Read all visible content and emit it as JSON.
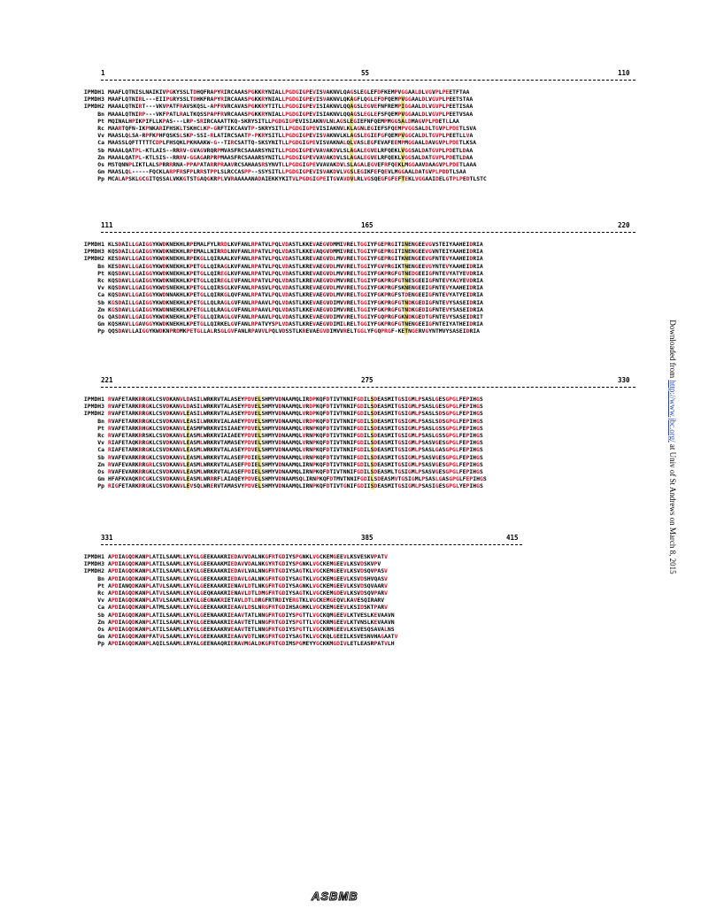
{
  "blocks": [
    {
      "start": "1",
      "mid": "55",
      "end": "110",
      "rows": [
        {
          "name": "IPMDH1",
          "seq": "MAAFLQTNISLNAIKIVPGKYSSLTDHQFRAPYRIRCAAASPGKKRYNIALLPGDGIGPEVISVAKNVLQAGSLEGLEFDFKEMPVGGAALDLVGVPLPEETFTAA"
        },
        {
          "name": "IPMDH3",
          "seq": "MAAFLQTNIRL---EIIPGRYSSLTDHKFRAPYRIRCAAASPGKKRYNIALLPGDGIGPEVISVAKNVLQKAGFLQGLEFDFQEMPVGGAALDLVGVPLPEETSTAA"
        },
        {
          "name": "IPMDH2",
          "seq": "MAAALQTNIRT---VKVPATFRAVSKQSL-APFRVRCAVASPGKKRYTITLLPGDGIGPEVISIAKNVLQQAGSLEGVEFNFREMPIGGAALDLVGVPLPEETISAA"
        },
        {
          "name": "Bn",
          "seq": "MAAALQTNIRP---VKFPATLRALTKQSSPAPFRVRCAAASPGKKRYNIALLPGDGIGPEVISIAKNVLQQAGSLEGLEFSFQEMPVGGAALDLVGVPLPEETVSAA"
        },
        {
          "name": "Pt",
          "seq": "MQINALHPIKPIFLLKPAS---LRP-SRIRCAAATTKQ-SKRYSITLLPGDGIGPEVISIAKNVLNLAGSLEGIEFNFQEMPMGGSALDMAGVPLPDETLLAA"
        },
        {
          "name": "Rc",
          "seq": "MAARTQFN-IKPNKARIFHSKLTSKHCLKP-GRFTIKCAAVTP-SKRYSITLLPGDGIGPEVISIAKNVLKLAGNLEGIEFSFQEMPVGGSALDLTGVPLPDETLSVA"
        },
        {
          "name": "Vv",
          "seq": "MAASLQLSA-RPFKPHFQSKSLSKP-SSI-RLATIRCSAATP-PKRYSITLLPGDGIGPEVISVAKNVLKLAGSLEGIEFGFQEMPVGGCALDLTGVPLPEETLLVA"
        },
        {
          "name": "Ca",
          "seq": "MAASSLQFTTTTTCDPLFHSQKLPKHAAKW-G--TIRCSATTQ-SKSYNITLLPGDGIGPEVISVAKNALQLVASLEGFEVAFEEMPMGGAALDAVGVPLPDETLKSA"
        },
        {
          "name": "Sb",
          "seq": "MAAALQATPL-KTLAIS--RRRV-GVAGVRQRPMVASFRCSAAARSYNITLLPGDGIGPEVVAVAKDVLSLAGALEGVELRFQEKLVGGSALDATGVPLPDETLDAA"
        },
        {
          "name": "Zm",
          "seq": "MAAALQATPL-KTLSIS--RRRV-GGAGARPRPMAASFRCSAAARSYNITLLPGDGIGPEVVAVAKDVLSLAGALEGVELRFQEKLVGGSALDATGVPLPDETLDAA"
        },
        {
          "name": "Os",
          "seq": "MSTQNNPLIKTLALSPRRRRNA-PPAPATARRPRAAVRCSAHAASRSYNVTLLPGDGIGPEVVAVAKDVLSLAGALEGVEFRFQEKLMGGAAVDAAGVPLPDETLAAA"
        },
        {
          "name": "Gm",
          "seq": "MAASLQL-----FQCKLARPFRSFPLRRSTPPLSLRCCASPP--SSYSITLLPGDGIGPEVISVAKDVLVGSLEGIKFEFQEVLMGGAALDATGVPLPDDTLSAA"
        },
        {
          "name": "Pp",
          "seq": "MCALAPSKLGCGITQSSALVKKGTSTGAQGKRPLVVRAAAAANADAIEKKYKITVLPGDGIGPEITGVAVDVLRLVGSQEGFGFEFTEKLVGGAAIDELGTPLPEDTLSTC"
        }
      ]
    },
    {
      "start": "111",
      "mid": "165",
      "end": "220",
      "rows": [
        {
          "name": "IPMDH1",
          "seq": "KLSDAILLGAIGGYKWDKNEKHLRPEMALFYLRRDLKVFANLRPATVLPQLVDASTLKKEVAEGVDMMIVRELTGGIYFGEPRGITINENGEEVGVSTEIYAAHEIDRIA"
        },
        {
          "name": "IPMDH3",
          "seq": "KQSDAILLGAIGGYKWDKNEKHLRPEMALLNIRRDLNVFANLRPATVLPQLVDASTLKKEVAQGVDMMIVRELTGGIYFGEPRGITINENGEEVGVNTEIYAAHEIDRIA"
        },
        {
          "name": "IPMDH2",
          "seq": "KESDAVLLGAIGGYKWDKNEKHLRPEKGLLQIRAALKVFANLRPATVLPQLVDASTLKREVAEGVDLMVVRELTGGIYFGEPRGITKNENGEEVGFNTEVYAAHEIDRIA"
        },
        {
          "name": "Bn",
          "seq": "KESDAVLLGAIGGYKWDKNEKHLKPETGLLQIRAGLKVFANLRPATVLPQLVDASTLKREVAEGVDLMVVRELTGGIYFGVPRGIKTNENGEEVGYNTEVYAAHEIDRIA"
        },
        {
          "name": "Pt",
          "seq": "KQSDAVLLGAIGGYKWDKNEKHLKPETGLLQIREGLKVFANLRPATVLPQLVDASTLKREVAEGVDLMVVRELTGGIYFGKPRGFGTNEDGEEIGFNTEVYATYEVDRIA"
        },
        {
          "name": "Rc",
          "seq": "KQSDAVLLGAIGGYKWDKNEKHLKPETGLLQIREGLEVFANLRPATVLPQLVDASTLKREVAEGVDVMVVRELTGGIYFGKPRGFGTNESGEEIGFNTEVYAGYEVDRIA"
        },
        {
          "name": "Vv",
          "seq": "KQSDAVLLGAIGGYKWDSNEKHLKPETGLLQIRSGLKVFANLRPASVLPQLVDASTLKREVAEGVDLMVVRELTGGIYFGKPRGFSKNENGEEIGFNTEVYAAHEIDRIA"
        },
        {
          "name": "Ca",
          "seq": "KQSDAVLLGAIGGYKWDNNAKHLKPETGLLQIRKGLQVFANLRPATVLPQLVDASTLKREVAEGVDLMVVRELTGGIYFGKPRGFSTDENGEEIGFNTEVYATYEIDRIA"
        },
        {
          "name": "Sb",
          "seq": "KGSDAILLGAIGGYKWDKNEKHLKPETGLLQLRAGLGVFANLRPAAVLPQLVDASTLKKEVAEGVDIMVVRELTGGIYFGKPRGFGTNDKGEDIGFNTEVYSASEIDRIA"
        },
        {
          "name": "Zm",
          "seq": "KGSDAVLLGAIGGYKWDNNEKHLKPETGLLQLRAGLGVFANLRPAAVLPQLVDASTLKKEVAEGVDIMVVRELTGGIYFGKPRGFGTNDKGEDIGFNTEVYSASEIDRIA"
        },
        {
          "name": "Os",
          "seq": "QASDAVLLGAIGGYKWDKNEKHLKPETGLLQIRAGLGVFANLRPAAVLPQLVDASTLKKEVAEGVDIMVVRELTGGIYFGQPRGFGKNDKGEDTGFNTEVYSASEIDRIT"
        },
        {
          "name": "Gm",
          "seq": "KQSHAVLLGAVGGYKWDKNEKHLKPETGLLQIRKELGVFANLRPATVYSPLVDASTLKREVAEGVDIMILRELTGGIYFGKPRGFGTNENGEEIGFNTEIYATHEIDRIA"
        },
        {
          "name": "Pp",
          "seq": "QQSDAVLLAIGGYKWDKNPRDMKPETGLLALRSGLGVFANLRPAVVLPQLVDSSTLKREVAEGVDIMVVRELTGGLYFGQPRGF-KETNGERVGYNTMVYSASEIDRIA"
        }
      ]
    },
    {
      "start": "221",
      "mid": "275",
      "end": "330",
      "rows": [
        {
          "name": "IPMDH1",
          "seq": "RVAFETARKRRGKLCSVDKANVLDASILWRKRVTALASEYPDVELSHMYVDNAAMQLIRDPKQFDTIVTNNIFGDILSDEASMITGSIGMLPSASLGESGPGLFEPIHGS"
        },
        {
          "name": "IPMDH3",
          "seq": "RVAFETARKRRGKLCSVDKANVLDASILWRKRVTALASEYPDVELSHMYVDNAAMQLVRDPKQFDTIVTNNIFGDILSDEASMITGSIGMLPSASLGESGPGLFEPIHGS"
        },
        {
          "name": "IPMDH2",
          "seq": "RVAFETARKRRGKLCSVDKANVLEASILWRKRVTALASEYPDVELSHMYVDNAAMQLVRDPKQFDTIVTNNIFGDILSDEASMITGSIGMLPSASLSDSGPGLFEPIHGS"
        },
        {
          "name": "Bn",
          "seq": "RVAFETARKRRGKLCSVDKANVLEASILWRKRVIALAAEYPDVELSHMYVDNAAMQLVRDPKQFDTIVTNNIFGDILSDEASMITGSIGMLPSASLSDSGPGLFEPIHGS"
        },
        {
          "name": "Pt",
          "seq": "RVAFETARKRHGKLCSVDKANVLEASMFWRKRVISIAAEYPDVELSHMYVDNAAMQLVRNPKQFDTIVTNNIFGDILSDEASMITGSIGMLPSASLGSSGPGLFEPIHGS"
        },
        {
          "name": "Rc",
          "seq": "RVAFETARKRRSKLCSVDKANVLEASMLWRKRVIAIAEEYPDVELSHMYVDNAAMQLVRNPKQFDTIVTNNIFGDILSDEASMITGSIGMLPSASLGSSGPGLFEPIHGS"
        },
        {
          "name": "Vv",
          "seq": "RIAFETAQKRRGKLCSVDKANVLEASMLWRKRVTAMASEYPDVELSHMYVDNAAMQLVRNPKQFDTIVTNNIFGDILSDEASMITGSIGMLPSASVGESGPGLFEPIHGS"
        },
        {
          "name": "Ca",
          "seq": "RIAFETARKRRGKLCSVDKANVLEASMLWRKRVTALASEYPDVELSHMYVDNAAMQLVRNPKQFDTIVTNNIFGDILSDEASMITGSIGMLPSASLGASGPGLFEPIHGS"
        },
        {
          "name": "Sb",
          "seq": "RVAFEVARKRRGKLCSVDKANVLEASMLWRKRVTALASEFPDIELSHMYVDNAAMQLVRNPKQFDTIVTNNIFGDILSDEASMITGSIGMLPSASVGESGPGLFEPIHGS"
        },
        {
          "name": "Zm",
          "seq": "RVAFEVARKRRGRLCSVDKANVLEASMLWRKRVTALASEFPDIELSHMYVDNAAMQLIRNPKQFDTIVTNNIFGDILSDEASMITGSIGMLPSASVGESGPGLFEPIHGS"
        },
        {
          "name": "Os",
          "seq": "RVAFEVARKRRGKLCSVDKANVLEASMLWRKRVTALASEFPDIELSHMYVDNAAMQLIRNPKQFDTIVTNNIFGDILSDEASMLTGSIGMLPSASVGESGPGLFEPIHGS"
        },
        {
          "name": "Gm",
          "seq": "HFAFKVAQKRCGKLCSVDKANVLEASMLWRRRFLAIAQEYPDVELSHMYVDNAAMSQLIRNPKQFDTMVTNNIFGDILSDEASMVTGSIGMLPSASLGASGPGLFEPIHGS"
        },
        {
          "name": "Pp",
          "seq": "RIGFETARKRRGKLCSVDKANVLEVSQLWRERVTAMASVYPDVELSHMYVDNAAMQLIRNPKQFDTIVTGNIFGDIISDEASMITGSIGMLPSASIGESGPGLYEPIHGS"
        }
      ]
    },
    {
      "start": "331",
      "mid": "385",
      "end": "415",
      "rows": [
        {
          "name": "IPMDH1",
          "seq": "APDIAGQDKANPLATILSAAMLLKYGLGEEKAAKRIEDAVVDALNKGFRTGDIYSPGNKLVGCKEMGEEVLKSVESKVPATV"
        },
        {
          "name": "IPMDH3",
          "seq": "APDIAGQDKANPLATILSAAMLLKYGLGEEKAAKMIEDAVVDALNKGYRTGDIYSPGNKLVGCKEMGEEVLKSVDSKVPV"
        },
        {
          "name": "IPMDH2",
          "seq": "APDIAGQDKANPLATILSAAMLLKYGLGEEKAAKRIEDAVLVALNNGFRTGDIYSAGTKLVGCKEMGEEVLKSVDSQVPASV"
        },
        {
          "name": "Bn",
          "seq": "APDIAGQDKANPLATILSAAMLLKYGLGEEKAAKRIEDAVLGALNKGFRTGDIYSAGTKLVGCKEMGEEVLKSVDSHVQASV"
        },
        {
          "name": "Pt",
          "seq": "APDIANQDKANPLATVLSAAMLLKYGLGEEKAAKRIENAVLDTLNKGFRTGDIYSAGNKLVGCKEMGEEVLKSVDSQVAARV"
        },
        {
          "name": "Rc",
          "seq": "APDIAGQDKANPLATVLSAAMLLKYGLGEQKAAKRIENAVLDTLDMGFRTGDIYSAGTKLVGCKEMGDEVLKSVDSQVPARV"
        },
        {
          "name": "Vv",
          "seq": "APDIAGQDKANPLATVLSAAMLLKYGLGEGNAKRIETAVLDTLDRGFRTRDIYERGTKLVGCKEMGEQVLKAVESQIRARV"
        },
        {
          "name": "Ca",
          "seq": "APDIAGQDKANPLATMLSAAMLLKYGLGEEKAAKRIEAAVLDSLNRGFRTGDIHSAGHKLVGCKEMGEEVLKSIDSKTPARV"
        },
        {
          "name": "Sb",
          "seq": "APDIAGQDKANPLATILSAAMLLKYGLGEENAAKRIEAAVTATLNNGFRTGDIYSPGTTLVGCKQMGEEVLKTVESLKEVAAVN"
        },
        {
          "name": "Zm",
          "seq": "APDIAGQDKANPLATILSAAMLLKYGLGEENAAKRIEAAVTETLNNGFRTGDIYSPGTTLVGCKRMGEEVLKTVNSLKEVAAVN"
        },
        {
          "name": "Os",
          "seq": "APDIAGQDKANPLATILSAAMLLKYGLGEEKAAKRVEAAVTETLNNGFRTGDIYSPGTTLVGCKRMGEEVLKSVESQSAVALNS"
        },
        {
          "name": "Gm",
          "seq": "APDIAGQDKANPFATVLSAAMLLKYGLGEEKAAKRIEAAVVDTLNKGFRTGDIYSAGTKLVGCKQLGEEILKSVESNVHAGAATV"
        },
        {
          "name": "Pp",
          "seq": "APDIAGQDKANPLAQILSAAMLLRYALGEENAAQRIERAVMGALDKGFRTGDIMSPGMEYYGCKKMGDIVLETLEASRPATVLH"
        }
      ]
    }
  ],
  "side_note": {
    "prefix": "Downloaded from ",
    "link": "http://www.jbc.org/",
    "suffix": " at Univ of St Andrews on March 8, 2015"
  },
  "logo_text": "ASBMB"
}
